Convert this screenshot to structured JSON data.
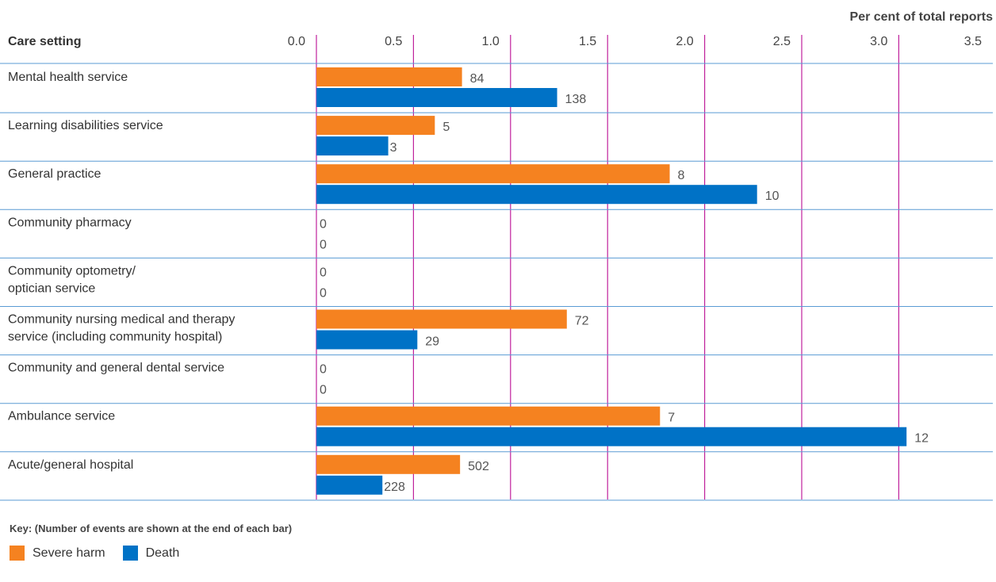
{
  "chart_data": {
    "type": "bar",
    "orientation": "horizontal",
    "title": "Per cent of total reports",
    "category_header": "Care setting",
    "xlim": [
      0,
      3.5
    ],
    "ticks": [
      "0.0",
      "0.5",
      "1.0",
      "1.5",
      "2.0",
      "2.5",
      "3.0",
      "3.5"
    ],
    "grid": true,
    "categories": [
      [
        "Mental health service"
      ],
      [
        "Learning disabilities service"
      ],
      [
        "General practice"
      ],
      [
        "Community pharmacy"
      ],
      [
        "Community optometry/",
        "optician service"
      ],
      [
        "Community nursing medical and therapy",
        "service (including community hospital)"
      ],
      [
        "Community and general dental service"
      ],
      [
        "Ambulance service"
      ],
      [
        "Acute/general hospital"
      ]
    ],
    "series": [
      {
        "name": "Severe harm",
        "color": "#F58220",
        "values": [
          0.75,
          0.61,
          1.82,
          0,
          0,
          1.29,
          0,
          1.77,
          0.74
        ],
        "labels": [
          "84",
          "5",
          "8",
          "0",
          "0",
          "72",
          "0",
          "7",
          "502"
        ]
      },
      {
        "name": "Death",
        "color": "#0072C6",
        "values": [
          1.24,
          0.37,
          2.27,
          0,
          0,
          0.52,
          0,
          3.04,
          0.34
        ],
        "labels": [
          "138",
          "3",
          "10",
          "0",
          "0",
          "29",
          "0",
          "12",
          "228"
        ]
      }
    ],
    "key_note": "Key: (Number of events are shown at the end of each bar)",
    "legend_position": "bottom-left",
    "colors": {
      "grid": "#C0219C",
      "separator": "#5A9BD4"
    }
  }
}
